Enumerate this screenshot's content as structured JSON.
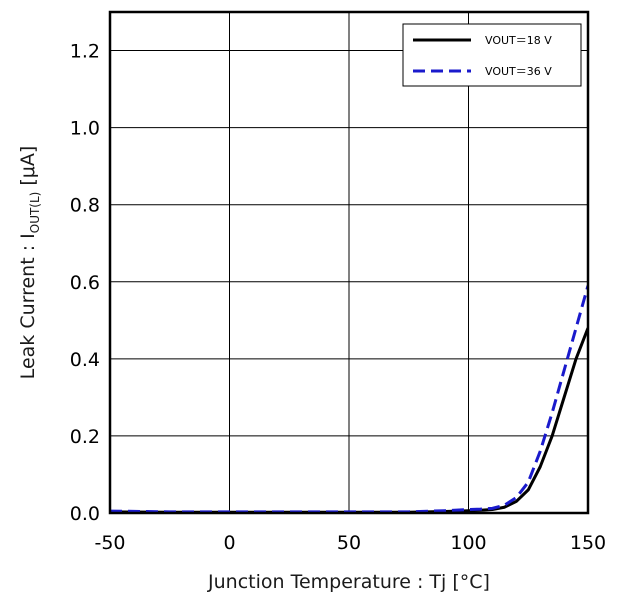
{
  "chart_data": {
    "type": "line",
    "xlabel": "Junction Temperature : Tj [°C]",
    "ylabel": {
      "prefix": "Leak Current : I",
      "subscript": "OUT(L)",
      "suffix": " [μA]"
    },
    "xlim": [
      -50,
      150
    ],
    "ylim": [
      0,
      1.3
    ],
    "x_ticks": [
      -50,
      0,
      50,
      100,
      150
    ],
    "x_tick_labels": [
      "-50",
      "0",
      "50",
      "100",
      "150"
    ],
    "y_ticks": [
      0,
      0.2,
      0.4,
      0.6,
      0.8,
      1.0,
      1.2
    ],
    "y_tick_labels": [
      "0.0",
      "0.2",
      "0.4",
      "0.6",
      "0.8",
      "1.0",
      "1.2"
    ],
    "grid": true,
    "legend_position": "top-right",
    "series": [
      {
        "name": "VOUT＝18 V",
        "color": "#000000",
        "style": "solid",
        "x": [
          -50,
          -25,
          0,
          25,
          50,
          75,
          90,
          100,
          105,
          110,
          115,
          120,
          125,
          130,
          135,
          140,
          145,
          150
        ],
        "y": [
          0.003,
          0.002,
          0.002,
          0.002,
          0.002,
          0.002,
          0.004,
          0.006,
          0.007,
          0.009,
          0.015,
          0.03,
          0.06,
          0.12,
          0.2,
          0.3,
          0.4,
          0.48
        ]
      },
      {
        "name": "VOUT＝36 V",
        "color": "#1a1acc",
        "style": "dashed",
        "x": [
          -50,
          -25,
          0,
          25,
          50,
          75,
          90,
          100,
          105,
          110,
          115,
          120,
          125,
          130,
          135,
          140,
          145,
          150
        ],
        "y": [
          0.005,
          0.003,
          0.003,
          0.003,
          0.003,
          0.003,
          0.006,
          0.009,
          0.01,
          0.012,
          0.02,
          0.04,
          0.08,
          0.16,
          0.26,
          0.37,
          0.48,
          0.59
        ]
      }
    ]
  }
}
